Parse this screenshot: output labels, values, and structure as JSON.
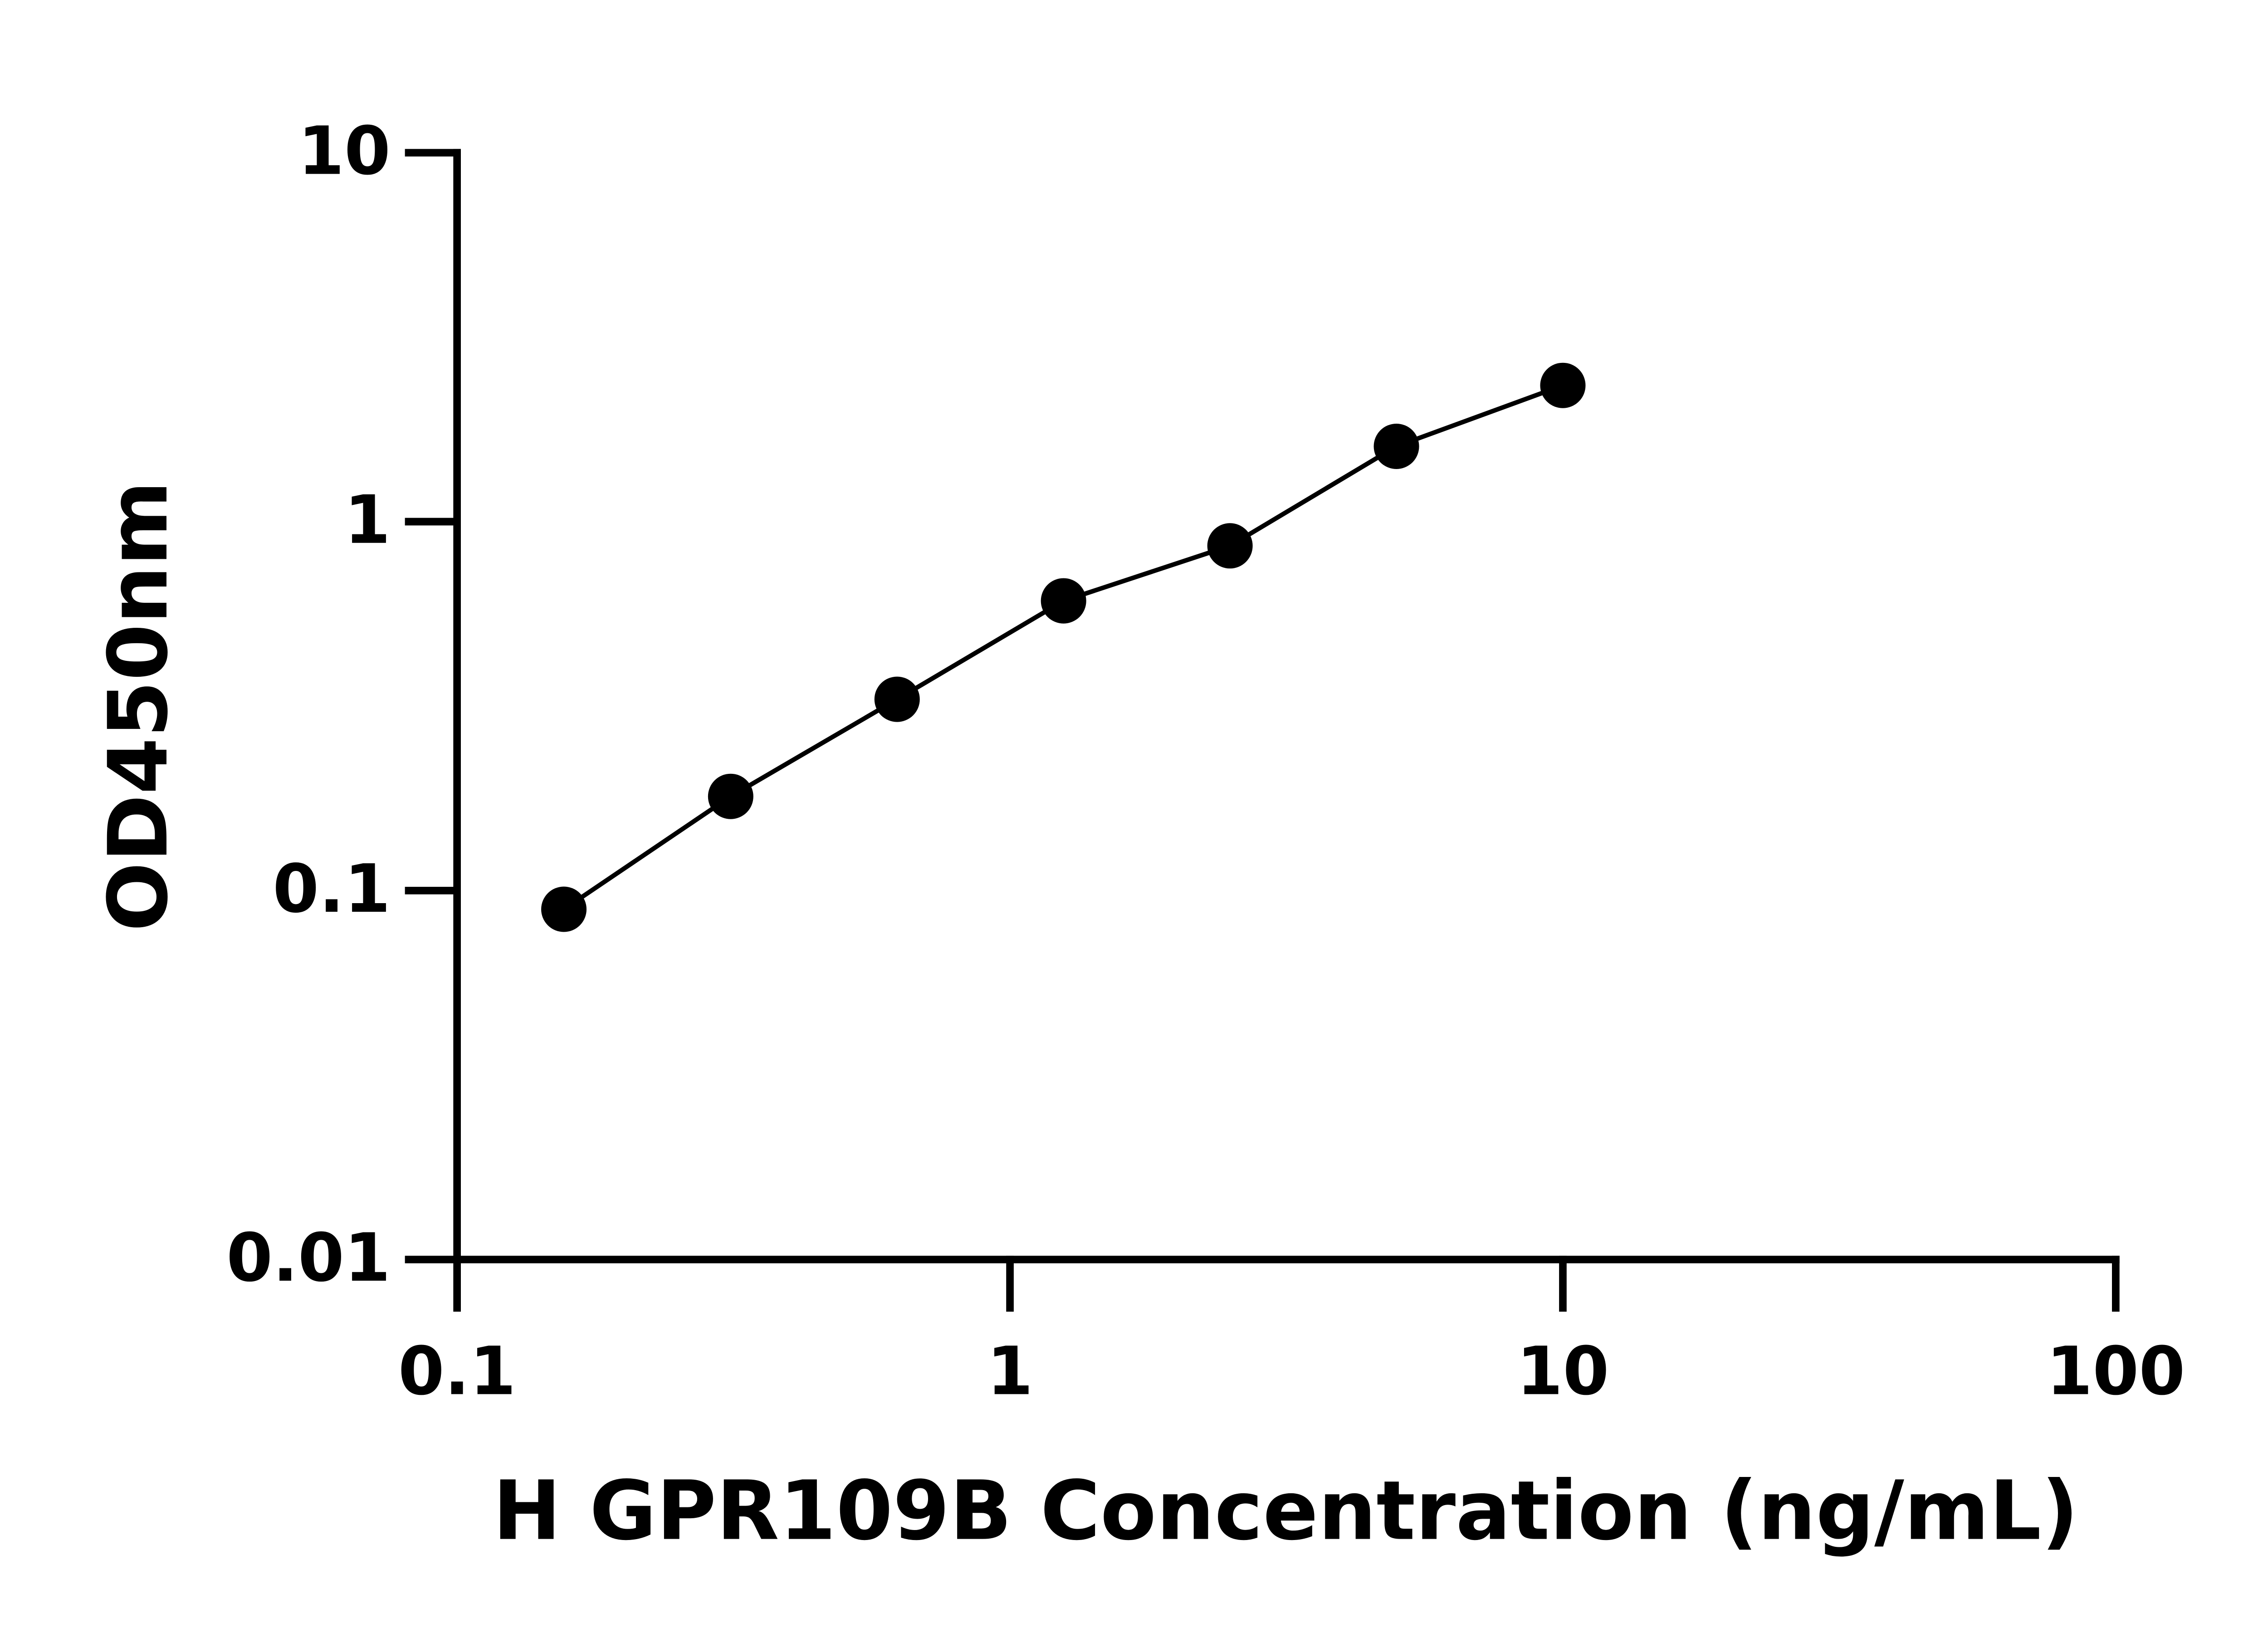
{
  "chart_data": {
    "type": "scatter",
    "x_label": "H GPR109B Concentration (ng/mL)",
    "y_label": "OD450nm",
    "xscale": "log",
    "yscale": "log",
    "xlim": [
      0.1,
      100
    ],
    "ylim": [
      0.01,
      10
    ],
    "xticks": [
      0.1,
      1,
      10,
      100
    ],
    "yticks": [
      0.01,
      0.1,
      1,
      10
    ],
    "fit_line": true,
    "series": [
      {
        "color": "#000000",
        "x": [
          0.156,
          0.3125,
          0.625,
          1.25,
          2.5,
          5,
          10
        ],
        "values": [
          0.089,
          0.18,
          0.33,
          0.61,
          0.86,
          1.6,
          2.34
        ]
      }
    ]
  }
}
